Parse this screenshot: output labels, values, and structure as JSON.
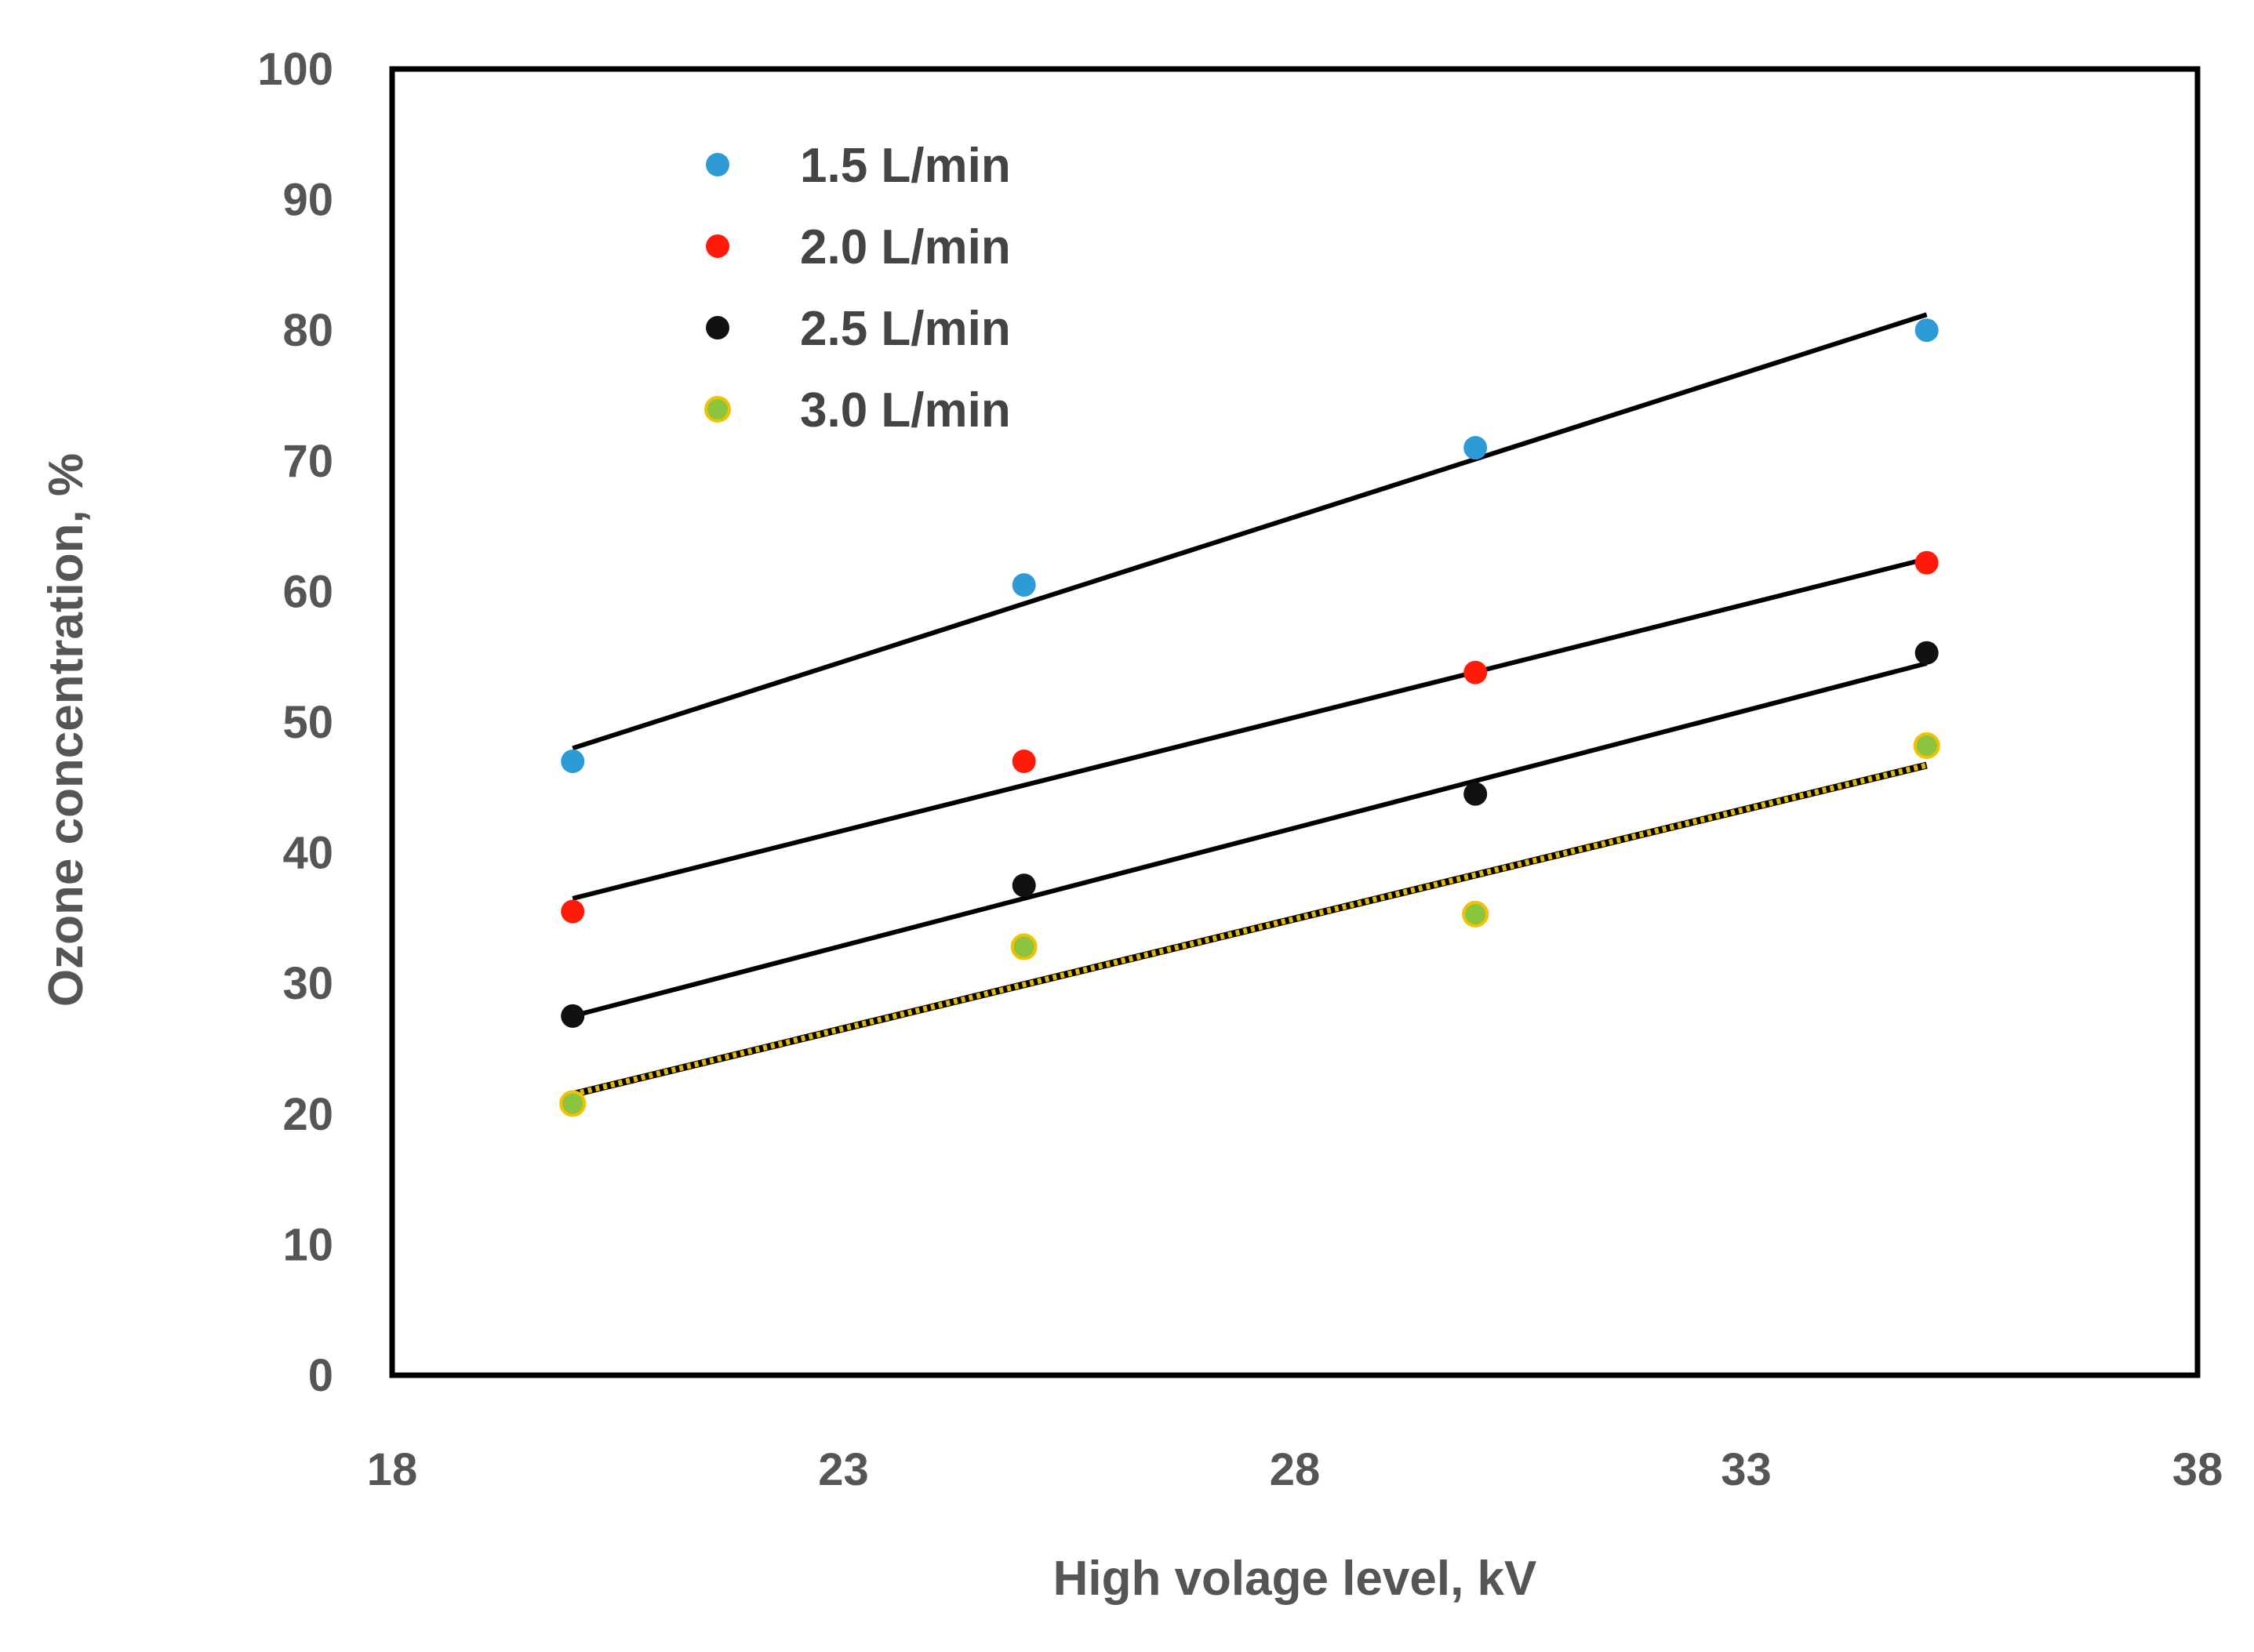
{
  "chart_data": {
    "type": "scatter",
    "title": "",
    "xlabel": "High volage level, kV",
    "ylabel": "Ozone concentration, %",
    "xlim": [
      18,
      38
    ],
    "ylim": [
      0,
      100
    ],
    "xticks": [
      18,
      23,
      28,
      33,
      38
    ],
    "yticks": [
      0,
      10,
      20,
      30,
      40,
      50,
      60,
      70,
      80,
      90,
      100
    ],
    "grid": false,
    "legend_position": "top-left",
    "series": [
      {
        "name": "1.5 L/min",
        "color": "#2E9BD6",
        "x": [
          20,
          25,
          30,
          35
        ],
        "y": [
          47,
          60.5,
          71,
          80
        ],
        "trendline": {
          "x": [
            20,
            35
          ],
          "y": [
            48,
            81.2
          ],
          "style": "solid",
          "color": "#000000"
        }
      },
      {
        "name": "2.0 L/min",
        "color": "#FF1A0A",
        "x": [
          20,
          25,
          30,
          35
        ],
        "y": [
          35.5,
          47,
          53.8,
          62.2
        ],
        "trendline": {
          "x": [
            20,
            35
          ],
          "y": [
            36.5,
            62.5
          ],
          "style": "solid",
          "color": "#000000"
        }
      },
      {
        "name": "2.5 L/min",
        "color": "#111111",
        "x": [
          20,
          25,
          30,
          35
        ],
        "y": [
          27.5,
          37.5,
          44.5,
          55.3
        ],
        "trendline": {
          "x": [
            20,
            35
          ],
          "y": [
            27.5,
            54.5
          ],
          "style": "solid",
          "color": "#000000"
        }
      },
      {
        "name": "3.0 L/min",
        "color": "#8BC43F",
        "edge_color": "#F2C200",
        "x": [
          20,
          25,
          30,
          35
        ],
        "y": [
          20.8,
          32.8,
          35.3,
          48.2
        ],
        "trendline": {
          "x": [
            20,
            35
          ],
          "y": [
            21.5,
            46.7
          ],
          "style": "dotted",
          "color": "#E3B800"
        }
      }
    ]
  }
}
